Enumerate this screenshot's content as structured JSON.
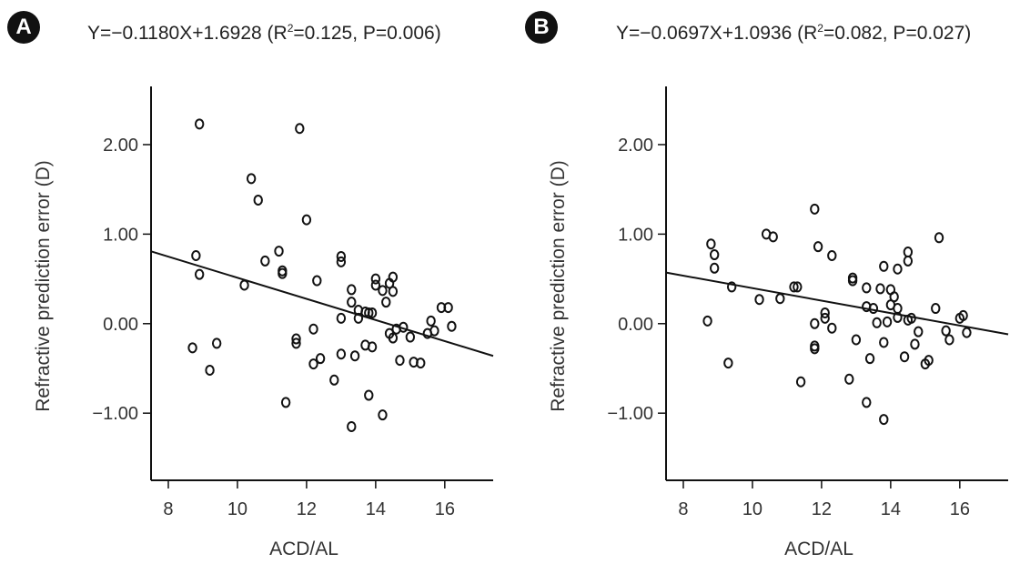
{
  "chart_data": [
    {
      "type": "scatter",
      "panel_label": "A",
      "equation": {
        "prefix": "Y=−0.1180X+1.6928 (R",
        "sup": "2",
        "suffix": "=0.125, P=0.006)"
      },
      "xlabel": "ACD/AL",
      "ylabel": "Refractive prediction error (D)",
      "xlim": [
        7.5,
        17.4
      ],
      "ylim": [
        -1.75,
        2.65
      ],
      "xticks": [
        8,
        10,
        12,
        14,
        16
      ],
      "yticks": [
        -1.0,
        0.0,
        1.0,
        2.0
      ],
      "ytick_labels": [
        "−1.00",
        "0.00",
        "1.00",
        "2.00"
      ],
      "grid": false,
      "fit_line": {
        "slope": -0.118,
        "intercept": 1.6928
      },
      "points": [
        [
          8.9,
          2.23
        ],
        [
          11.8,
          2.18
        ],
        [
          10.4,
          1.62
        ],
        [
          10.6,
          1.38
        ],
        [
          12.0,
          1.16
        ],
        [
          8.8,
          0.76
        ],
        [
          11.2,
          0.81
        ],
        [
          10.8,
          0.7
        ],
        [
          13.0,
          0.75
        ],
        [
          13.0,
          0.69
        ],
        [
          8.9,
          0.55
        ],
        [
          11.3,
          0.59
        ],
        [
          11.3,
          0.56
        ],
        [
          12.3,
          0.48
        ],
        [
          10.2,
          0.43
        ],
        [
          14.0,
          0.5
        ],
        [
          14.5,
          0.52
        ],
        [
          14.4,
          0.45
        ],
        [
          14.0,
          0.43
        ],
        [
          14.2,
          0.37
        ],
        [
          14.5,
          0.36
        ],
        [
          13.3,
          0.38
        ],
        [
          13.3,
          0.24
        ],
        [
          14.3,
          0.24
        ],
        [
          13.5,
          0.15
        ],
        [
          13.7,
          0.13
        ],
        [
          13.9,
          0.12
        ],
        [
          13.8,
          0.12
        ],
        [
          13.5,
          0.06
        ],
        [
          13.0,
          0.06
        ],
        [
          15.9,
          0.18
        ],
        [
          16.1,
          0.18
        ],
        [
          15.6,
          0.03
        ],
        [
          16.2,
          -0.03
        ],
        [
          15.7,
          -0.08
        ],
        [
          14.8,
          -0.04
        ],
        [
          14.6,
          -0.06
        ],
        [
          14.4,
          -0.11
        ],
        [
          15.0,
          -0.15
        ],
        [
          14.5,
          -0.16
        ],
        [
          15.5,
          -0.11
        ],
        [
          12.2,
          -0.06
        ],
        [
          11.7,
          -0.17
        ],
        [
          11.7,
          -0.22
        ],
        [
          9.4,
          -0.22
        ],
        [
          8.7,
          -0.27
        ],
        [
          13.7,
          -0.24
        ],
        [
          13.9,
          -0.26
        ],
        [
          13.0,
          -0.34
        ],
        [
          13.4,
          -0.36
        ],
        [
          12.4,
          -0.39
        ],
        [
          12.2,
          -0.45
        ],
        [
          14.7,
          -0.41
        ],
        [
          15.1,
          -0.43
        ],
        [
          15.3,
          -0.44
        ],
        [
          9.2,
          -0.52
        ],
        [
          12.8,
          -0.63
        ],
        [
          13.8,
          -0.8
        ],
        [
          11.4,
          -0.88
        ],
        [
          14.2,
          -1.02
        ],
        [
          13.3,
          -1.15
        ]
      ]
    },
    {
      "type": "scatter",
      "panel_label": "B",
      "equation": {
        "prefix": "Y=−0.0697X+1.0936 (R",
        "sup": "2",
        "suffix": "=0.082, P=0.027)"
      },
      "xlabel": "ACD/AL",
      "ylabel": "Refractive prediction error (D)",
      "xlim": [
        7.5,
        17.4
      ],
      "ylim": [
        -1.75,
        2.65
      ],
      "xticks": [
        8,
        10,
        12,
        14,
        16
      ],
      "yticks": [
        -1.0,
        0.0,
        1.0,
        2.0
      ],
      "ytick_labels": [
        "−1.00",
        "0.00",
        "1.00",
        "2.00"
      ],
      "grid": false,
      "fit_line": {
        "slope": -0.0697,
        "intercept": 1.0936
      },
      "points": [
        [
          11.8,
          1.28
        ],
        [
          10.4,
          1.0
        ],
        [
          10.6,
          0.97
        ],
        [
          15.4,
          0.96
        ],
        [
          8.8,
          0.89
        ],
        [
          11.9,
          0.86
        ],
        [
          14.5,
          0.8
        ],
        [
          8.9,
          0.77
        ],
        [
          12.3,
          0.76
        ],
        [
          14.5,
          0.7
        ],
        [
          13.8,
          0.64
        ],
        [
          14.2,
          0.61
        ],
        [
          8.9,
          0.62
        ],
        [
          12.9,
          0.51
        ],
        [
          12.9,
          0.48
        ],
        [
          9.4,
          0.41
        ],
        [
          11.2,
          0.41
        ],
        [
          11.3,
          0.41
        ],
        [
          13.3,
          0.4
        ],
        [
          13.7,
          0.39
        ],
        [
          14.0,
          0.38
        ],
        [
          14.1,
          0.3
        ],
        [
          10.8,
          0.28
        ],
        [
          10.2,
          0.27
        ],
        [
          14.0,
          0.21
        ],
        [
          13.3,
          0.19
        ],
        [
          13.5,
          0.17
        ],
        [
          15.3,
          0.17
        ],
        [
          14.2,
          0.17
        ],
        [
          12.1,
          0.12
        ],
        [
          16.0,
          0.06
        ],
        [
          16.1,
          0.09
        ],
        [
          14.2,
          0.07
        ],
        [
          14.5,
          0.04
        ],
        [
          14.6,
          0.06
        ],
        [
          12.1,
          0.06
        ],
        [
          13.6,
          0.01
        ],
        [
          13.9,
          0.02
        ],
        [
          8.7,
          0.03
        ],
        [
          11.8,
          0.0
        ],
        [
          12.3,
          -0.05
        ],
        [
          14.8,
          -0.09
        ],
        [
          15.6,
          -0.08
        ],
        [
          16.2,
          -0.1
        ],
        [
          15.7,
          -0.18
        ],
        [
          13.0,
          -0.18
        ],
        [
          13.8,
          -0.21
        ],
        [
          14.7,
          -0.23
        ],
        [
          11.8,
          -0.25
        ],
        [
          11.8,
          -0.28
        ],
        [
          14.4,
          -0.37
        ],
        [
          13.4,
          -0.39
        ],
        [
          15.1,
          -0.41
        ],
        [
          15.0,
          -0.45
        ],
        [
          9.3,
          -0.44
        ],
        [
          12.8,
          -0.62
        ],
        [
          11.4,
          -0.65
        ],
        [
          13.3,
          -0.88
        ],
        [
          13.8,
          -1.07
        ]
      ]
    }
  ]
}
